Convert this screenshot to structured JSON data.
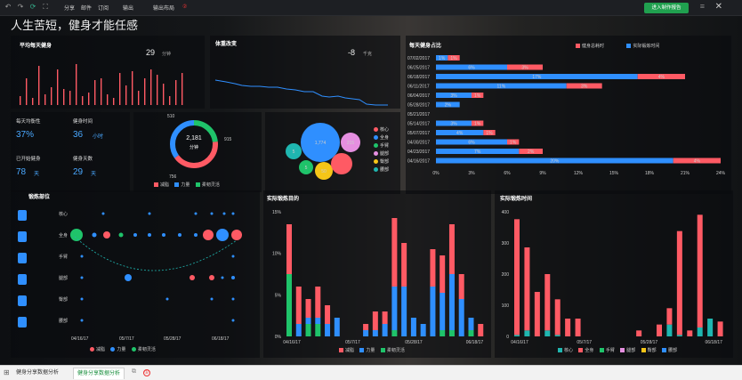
{
  "toolbar": {
    "share": "分享",
    "mail": "邮件",
    "subscribe": "订阅",
    "output": "输出",
    "output_layout": "输出布局",
    "badge": "②",
    "enter_report": "进入制作报告"
  },
  "page_title": "人生苦短，健身才能任感",
  "panels": {
    "avg_duration": {
      "title": "平均每天健身",
      "value": "29",
      "unit": "分钟"
    },
    "weight": {
      "title": "体重改变",
      "value": "-8",
      "unit": "千克"
    },
    "share": {
      "title": "每天健身占比"
    },
    "kpis": [
      {
        "label": "每天均衡性",
        "value": "37%",
        "unit": ""
      },
      {
        "label": "健身时间",
        "value": "36",
        "unit": "小时"
      },
      {
        "label": "已开始健身",
        "value": "78",
        "unit": "天"
      },
      {
        "label": "健身天数",
        "value": "29",
        "unit": "天"
      }
    ],
    "donut": {
      "center_value": "2,181",
      "center_unit": "分钟",
      "labels": [
        "510",
        "915",
        "756"
      ]
    },
    "body_parts": {
      "title": "锻炼部位"
    },
    "actual_goal": {
      "title": "实际锻炼目的"
    },
    "actual_time": {
      "title": "实际锻炼时间"
    }
  },
  "legend_goals": [
    {
      "name": "减脂",
      "color": "#ff5a64"
    },
    {
      "name": "力量",
      "color": "#2f8fff"
    },
    {
      "name": "柔韧灵活",
      "color": "#1fc36a"
    }
  ],
  "legend_parts": [
    {
      "name": "核心",
      "color": "#1fb6b0"
    },
    {
      "name": "全身",
      "color": "#ff5a64"
    },
    {
      "name": "手臂",
      "color": "#1fc36a"
    },
    {
      "name": "腿部",
      "color": "#e58fe0"
    },
    {
      "name": "臀部",
      "color": "#f5c518"
    },
    {
      "name": "腰部",
      "color": "#2f8fff"
    }
  ],
  "bubble_values": [
    "1,774",
    "215",
    "5",
    "5",
    "50"
  ],
  "statusbar": {
    "tab1": "健身分享数据分析",
    "tab2": "健身分享数据分析",
    "badge": "①"
  },
  "chart_data": [
    {
      "type": "bar",
      "title": "每天健身占比",
      "categories": [
        "07/02/2017",
        "06/25/2017",
        "06/18/2017",
        "06/11/2017",
        "06/04/2017",
        "05/28/2017",
        "05/21/2017",
        "05/14/2017",
        "05/07/2017",
        "04/30/2017",
        "04/23/2017",
        "04/16/2017"
      ],
      "series": [
        {
          "name": "实际锻炼时间",
          "values": [
            1,
            6,
            17,
            11,
            3,
            2,
            0,
            3,
            4,
            6,
            7,
            20
          ]
        },
        {
          "name": "健身总耗时",
          "values": [
            1,
            3,
            4,
            3,
            1,
            0,
            0,
            1,
            1,
            1,
            2,
            4
          ]
        }
      ],
      "value_labels": {
        "actual": [
          "1%",
          "6%",
          "17%",
          "11%",
          "3%",
          "2%",
          "",
          "3%",
          "4%",
          "6%",
          "7%",
          "20%"
        ],
        "total": [
          "1%",
          "3%",
          "4%",
          "3%",
          "1%",
          "0%",
          "",
          "1%",
          "1%",
          "1%",
          "2%",
          "4%"
        ]
      },
      "xticks": [
        "0%",
        "3%",
        "6%",
        "9%",
        "12%",
        "15%",
        "18%",
        "21%",
        "24%"
      ],
      "xlim": [
        0,
        24
      ]
    },
    {
      "type": "bar",
      "title": "实际锻炼目的",
      "yticks": [
        "0%",
        "5%",
        "10%",
        "15%"
      ],
      "xticks": [
        "04/16/17",
        "05/7/17",
        "05/28/17",
        "06/18/17"
      ],
      "series": [
        {
          "name": "减脂",
          "values": [
            8,
            6,
            3,
            5,
            3,
            0,
            0,
            0,
            1,
            3,
            2,
            11,
            7,
            0,
            0,
            6,
            6,
            8,
            4,
            0,
            2
          ]
        },
        {
          "name": "力量",
          "values": [
            0,
            2,
            1,
            1,
            2,
            3,
            0,
            0,
            1,
            1,
            2,
            7,
            8,
            3,
            2,
            8,
            6,
            9,
            6,
            2,
            0
          ]
        },
        {
          "name": "柔韧灵活",
          "values": [
            10,
            0,
            2,
            2,
            0,
            0,
            0,
            0,
            0,
            0,
            0,
            1,
            0,
            0,
            0,
            0,
            1,
            1,
            0,
            1,
            0
          ]
        }
      ]
    },
    {
      "type": "bar",
      "title": "实际锻炼时间",
      "yticks": [
        "0",
        "100",
        "200",
        "300",
        "400"
      ],
      "xticks": [
        "04/16/17",
        "05/7/17",
        "05/28/17",
        "06/18/17"
      ],
      "series": [
        {
          "name": "全身",
          "values": [
            390,
            280,
            150,
            190,
            120,
            60,
            60,
            0,
            0,
            0,
            0,
            0,
            20,
            0,
            40,
            55,
            350,
            20,
            380,
            0,
            50
          ]
        },
        {
          "name": "核心",
          "values": [
            5,
            20,
            0,
            20,
            5,
            0,
            0,
            0,
            0,
            0,
            0,
            0,
            0,
            0,
            0,
            40,
            5,
            0,
            30,
            60,
            0
          ]
        }
      ]
    }
  ]
}
